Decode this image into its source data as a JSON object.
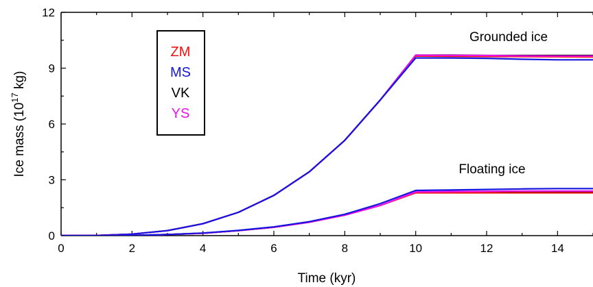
{
  "chart_data": {
    "type": "line",
    "xlabel": "Time (kyr)",
    "ylabel": {
      "main": "Ice mass (10",
      "sup": "17",
      "end": " kg)"
    },
    "xlim": [
      0,
      15
    ],
    "ylim": [
      0,
      12
    ],
    "x_ticks": [
      "0",
      "2",
      "4",
      "6",
      "8",
      "10",
      "12",
      "14"
    ],
    "y_ticks": [
      "0",
      "3",
      "6",
      "9",
      "12"
    ],
    "annotations": [
      "Grounded ice",
      "Floating ice"
    ],
    "legend": [
      {
        "name": "ZM",
        "color": "#ee1111"
      },
      {
        "name": "MS",
        "color": "#1515e0"
      },
      {
        "name": "VK",
        "color": "#000000"
      },
      {
        "name": "YS",
        "color": "#ee11ee"
      }
    ],
    "series": [
      {
        "model": "VK",
        "quantity": "Grounded ice",
        "color": "#000000",
        "x": [
          0,
          1,
          2,
          3,
          4,
          5,
          6,
          7,
          8,
          9,
          10,
          11,
          12,
          13,
          14,
          15
        ],
        "y": [
          0,
          0.01,
          0.08,
          0.27,
          0.64,
          1.25,
          2.16,
          3.43,
          5.12,
          7.29,
          9.7,
          9.7,
          9.68,
          9.68,
          9.68,
          9.68
        ]
      },
      {
        "model": "ZM",
        "quantity": "Grounded ice",
        "color": "#ee1111",
        "x": [
          0,
          1,
          2,
          3,
          4,
          5,
          6,
          7,
          8,
          9,
          10,
          11,
          12,
          13,
          14,
          15
        ],
        "y": [
          0,
          0.01,
          0.08,
          0.27,
          0.64,
          1.25,
          2.16,
          3.43,
          5.12,
          7.29,
          9.65,
          9.64,
          9.63,
          9.62,
          9.61,
          9.6
        ]
      },
      {
        "model": "YS",
        "quantity": "Grounded ice",
        "color": "#ee11ee",
        "x": [
          0,
          1,
          2,
          3,
          4,
          5,
          6,
          7,
          8,
          9,
          10,
          11,
          12,
          13,
          14,
          15
        ],
        "y": [
          0,
          0.01,
          0.08,
          0.27,
          0.64,
          1.25,
          2.16,
          3.43,
          5.12,
          7.29,
          9.7,
          9.69,
          9.68,
          9.66,
          9.65,
          9.65
        ]
      },
      {
        "model": "MS",
        "quantity": "Grounded ice",
        "color": "#1515e0",
        "x": [
          0,
          1,
          2,
          3,
          4,
          5,
          6,
          7,
          8,
          9,
          10,
          11,
          12,
          13,
          14,
          15
        ],
        "y": [
          0,
          0.01,
          0.08,
          0.27,
          0.64,
          1.25,
          2.16,
          3.43,
          5.12,
          7.29,
          9.55,
          9.55,
          9.53,
          9.48,
          9.45,
          9.45
        ]
      },
      {
        "model": "VK",
        "quantity": "Floating ice",
        "color": "#000000",
        "x": [
          0,
          1,
          2,
          3,
          4,
          5,
          6,
          7,
          8,
          9,
          10,
          11,
          12,
          13,
          14,
          15
        ],
        "y": [
          0,
          0,
          0.01,
          0.06,
          0.13,
          0.27,
          0.45,
          0.72,
          1.1,
          1.62,
          2.32,
          2.32,
          2.32,
          2.32,
          2.33,
          2.33
        ]
      },
      {
        "model": "ZM",
        "quantity": "Floating ice",
        "color": "#ee1111",
        "x": [
          0,
          1,
          2,
          3,
          4,
          5,
          6,
          7,
          8,
          9,
          10,
          11,
          12,
          13,
          14,
          15
        ],
        "y": [
          0,
          0,
          0.01,
          0.06,
          0.13,
          0.27,
          0.45,
          0.72,
          1.1,
          1.62,
          2.3,
          2.3,
          2.3,
          2.3,
          2.3,
          2.3
        ]
      },
      {
        "model": "YS",
        "quantity": "Floating ice",
        "color": "#ee11ee",
        "x": [
          0,
          1,
          2,
          3,
          4,
          5,
          6,
          7,
          8,
          9,
          10,
          11,
          12,
          13,
          14,
          15
        ],
        "y": [
          0,
          0,
          0.01,
          0.06,
          0.13,
          0.27,
          0.45,
          0.72,
          1.1,
          1.62,
          2.35,
          2.37,
          2.38,
          2.4,
          2.4,
          2.4
        ]
      },
      {
        "model": "MS",
        "quantity": "Floating ice",
        "color": "#1515e0",
        "x": [
          0,
          1,
          2,
          3,
          4,
          5,
          6,
          7,
          8,
          9,
          10,
          11,
          12,
          13,
          14,
          15
        ],
        "y": [
          0,
          0,
          0.01,
          0.06,
          0.14,
          0.28,
          0.47,
          0.75,
          1.15,
          1.72,
          2.43,
          2.45,
          2.48,
          2.51,
          2.53,
          2.53
        ]
      }
    ]
  }
}
